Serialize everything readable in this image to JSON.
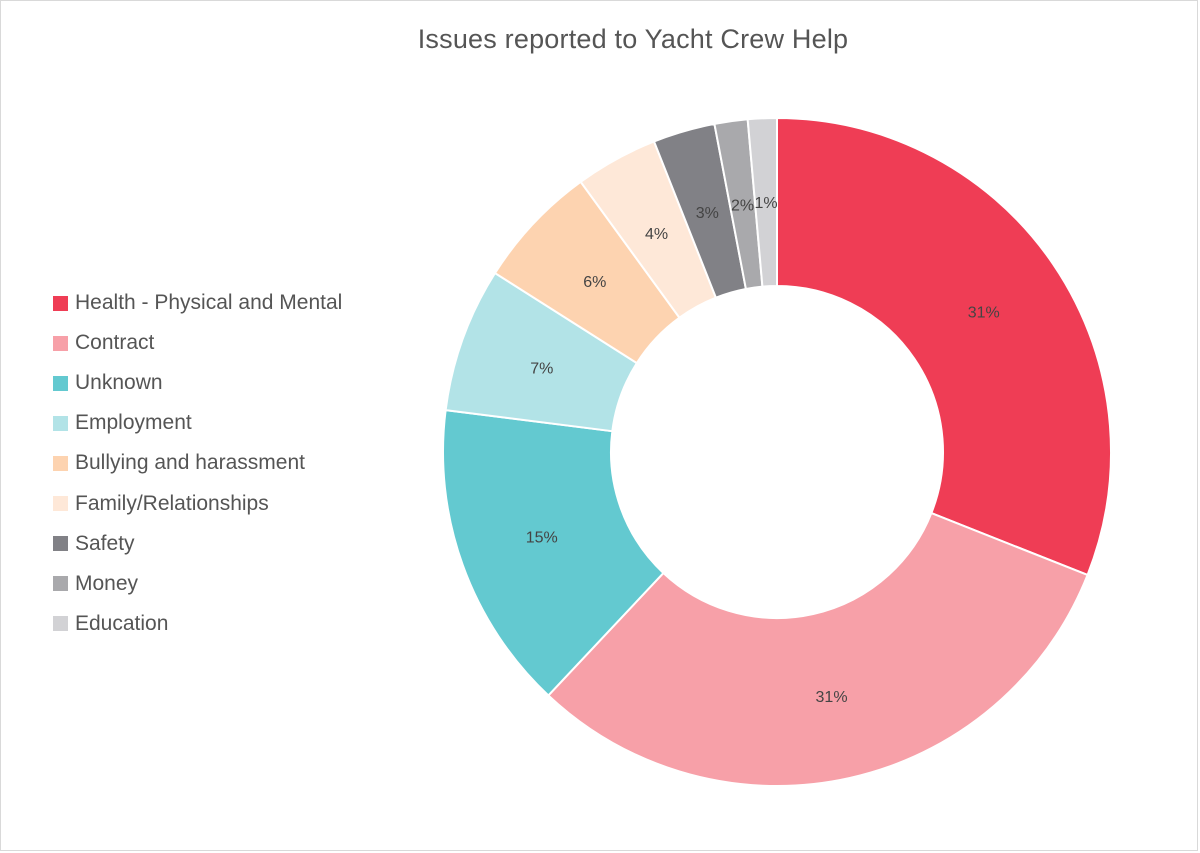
{
  "chart_data": {
    "type": "pie",
    "donut": true,
    "title": "Issues reported to Yacht Crew Help",
    "legend_position": "left",
    "slices": [
      {
        "label": "Health - Physical and Mental",
        "value": 31,
        "display": "31%",
        "color": "#ef3d55"
      },
      {
        "label": "Contract",
        "value": 31,
        "display": "31%",
        "color": "#f7a0a8"
      },
      {
        "label": "Unknown",
        "value": 15,
        "display": "15%",
        "color": "#63c9d0"
      },
      {
        "label": "Employment",
        "value": 7,
        "display": "7%",
        "color": "#b2e3e7"
      },
      {
        "label": "Bullying and harassment",
        "value": 6,
        "display": "6%",
        "color": "#fdd3b0"
      },
      {
        "label": "Family/Relationships",
        "value": 4,
        "display": "4%",
        "color": "#fee8d8"
      },
      {
        "label": "Safety",
        "value": 3,
        "display": "3%",
        "color": "#818186"
      },
      {
        "label": "Money",
        "value": 1.6,
        "display": "2%",
        "color": "#a9a9ac"
      },
      {
        "label": "Education",
        "value": 1.4,
        "display": "1%",
        "color": "#d2d2d5"
      }
    ]
  }
}
